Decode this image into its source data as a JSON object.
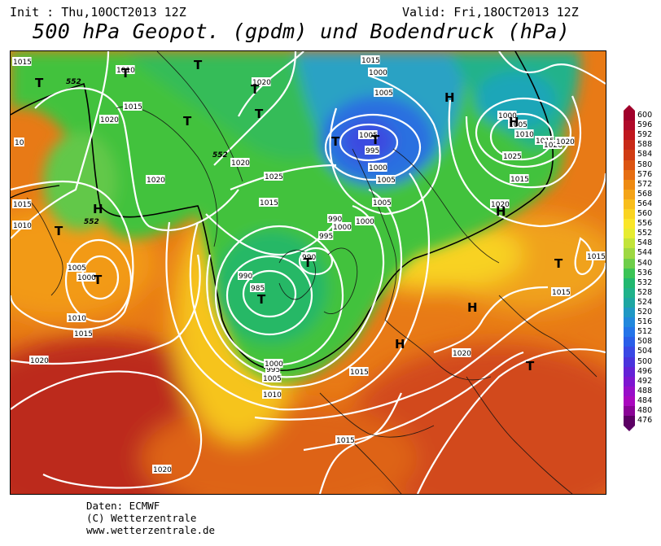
{
  "header": {
    "init": "Init : Thu,10OCT2013 12Z",
    "valid": "Valid: Fri,18OCT2013 12Z",
    "title": "500 hPa Geopot. (gpdm) und Bodendruck (hPa)"
  },
  "map": {
    "isobar_labels": [
      "1015",
      "1010",
      "1015",
      "1020",
      "1020",
      "1015",
      "1010",
      "1005",
      "1000",
      "1010",
      "1015",
      "1020",
      "1020",
      "1020",
      "1020",
      "1025",
      "1015",
      "1000",
      "995",
      "990",
      "990",
      "985",
      "995",
      "1000",
      "1005",
      "1010",
      "1015",
      "1015",
      "1000",
      "1005",
      "1005",
      "995",
      "1000",
      "1005",
      "1005",
      "1000",
      "990",
      "995",
      "1000",
      "1005",
      "1010",
      "1015",
      "1020",
      "1025",
      "1015",
      "1020",
      "1020",
      "1015",
      "1020",
      "1015",
      "1015",
      "15",
      "10"
    ],
    "contour_tags": [
      "552",
      "552",
      "552"
    ],
    "pressure_centers": [
      {
        "label": "T"
      },
      {
        "label": "T"
      },
      {
        "label": "T"
      },
      {
        "label": "T"
      },
      {
        "label": "T"
      },
      {
        "label": "T"
      },
      {
        "label": "T"
      },
      {
        "label": "T"
      },
      {
        "label": "T"
      },
      {
        "label": "T"
      },
      {
        "label": "T"
      },
      {
        "label": "T"
      },
      {
        "label": "T"
      },
      {
        "label": "T"
      },
      {
        "label": "H"
      },
      {
        "label": "H"
      },
      {
        "label": "H"
      },
      {
        "label": "H"
      },
      {
        "label": "H"
      },
      {
        "label": "H"
      }
    ]
  },
  "legend": {
    "values": [
      "600",
      "596",
      "592",
      "588",
      "584",
      "580",
      "576",
      "572",
      "568",
      "564",
      "560",
      "556",
      "552",
      "548",
      "544",
      "540",
      "536",
      "532",
      "528",
      "524",
      "520",
      "516",
      "512",
      "508",
      "504",
      "500",
      "496",
      "492",
      "488",
      "484",
      "480",
      "476"
    ],
    "colors": [
      "#a0002a",
      "#b00a2a",
      "#c0181e",
      "#c82a18",
      "#d03c14",
      "#dc5412",
      "#e66e12",
      "#ee8a12",
      "#f4a418",
      "#f8be1c",
      "#fad422",
      "#fae62a",
      "#e6ec32",
      "#c2e43a",
      "#9ed842",
      "#6ece4a",
      "#3cc456",
      "#22b870",
      "#20b28a",
      "#1ea6a2",
      "#2098c4",
      "#2288dc",
      "#2474e8",
      "#2a5ee8",
      "#3a48e4",
      "#4a34dc",
      "#6422d6",
      "#7e16d0",
      "#980ec8",
      "#aa08be",
      "#8a0496",
      "#5c0064"
    ]
  },
  "footer": {
    "line1": "Daten: ECMWF",
    "line2": "(C) Wetterzentrale",
    "line3": "www.wetterzentrale.de"
  }
}
